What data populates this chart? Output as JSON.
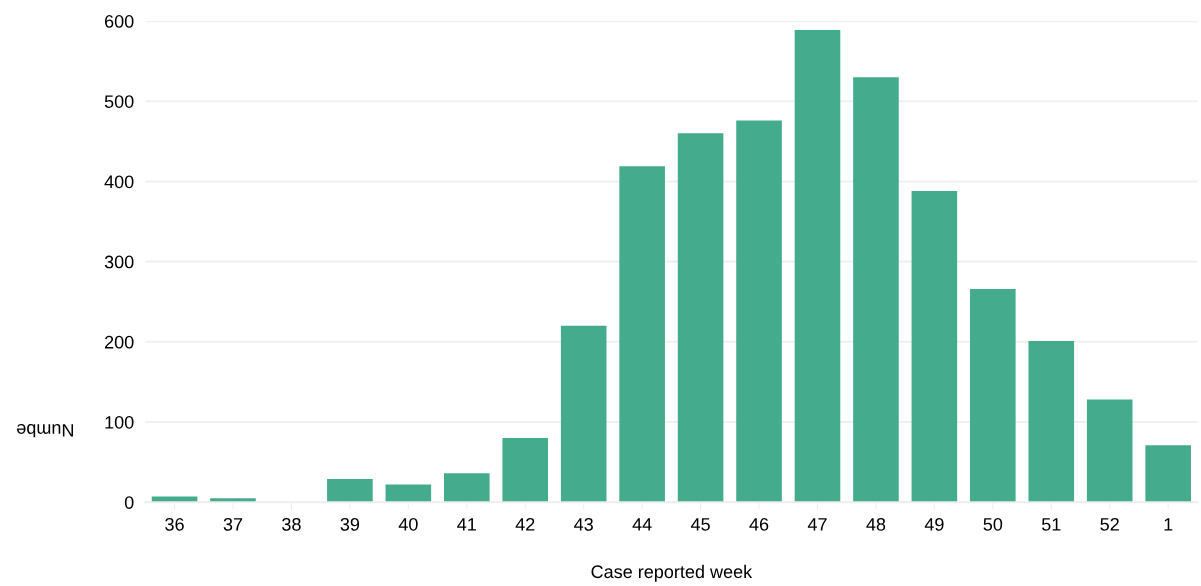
{
  "chart_data": {
    "type": "bar",
    "xlabel": "Case reported week",
    "ylabel": "Numbe",
    "categories": [
      "36",
      "37",
      "38",
      "39",
      "40",
      "41",
      "42",
      "43",
      "44",
      "45",
      "46",
      "47",
      "48",
      "49",
      "50",
      "51",
      "52",
      "1"
    ],
    "series": [
      {
        "color": "#44ab8c",
        "values": [
          7,
          5,
          0,
          29,
          22,
          36,
          80,
          220,
          419,
          460,
          476,
          589,
          530,
          388,
          266,
          201,
          128,
          71
        ]
      }
    ],
    "ylim": [
      0,
      600
    ],
    "yticks": [
      0,
      100,
      200,
      300,
      400,
      500,
      600
    ],
    "grid": "y",
    "legend": false
  }
}
